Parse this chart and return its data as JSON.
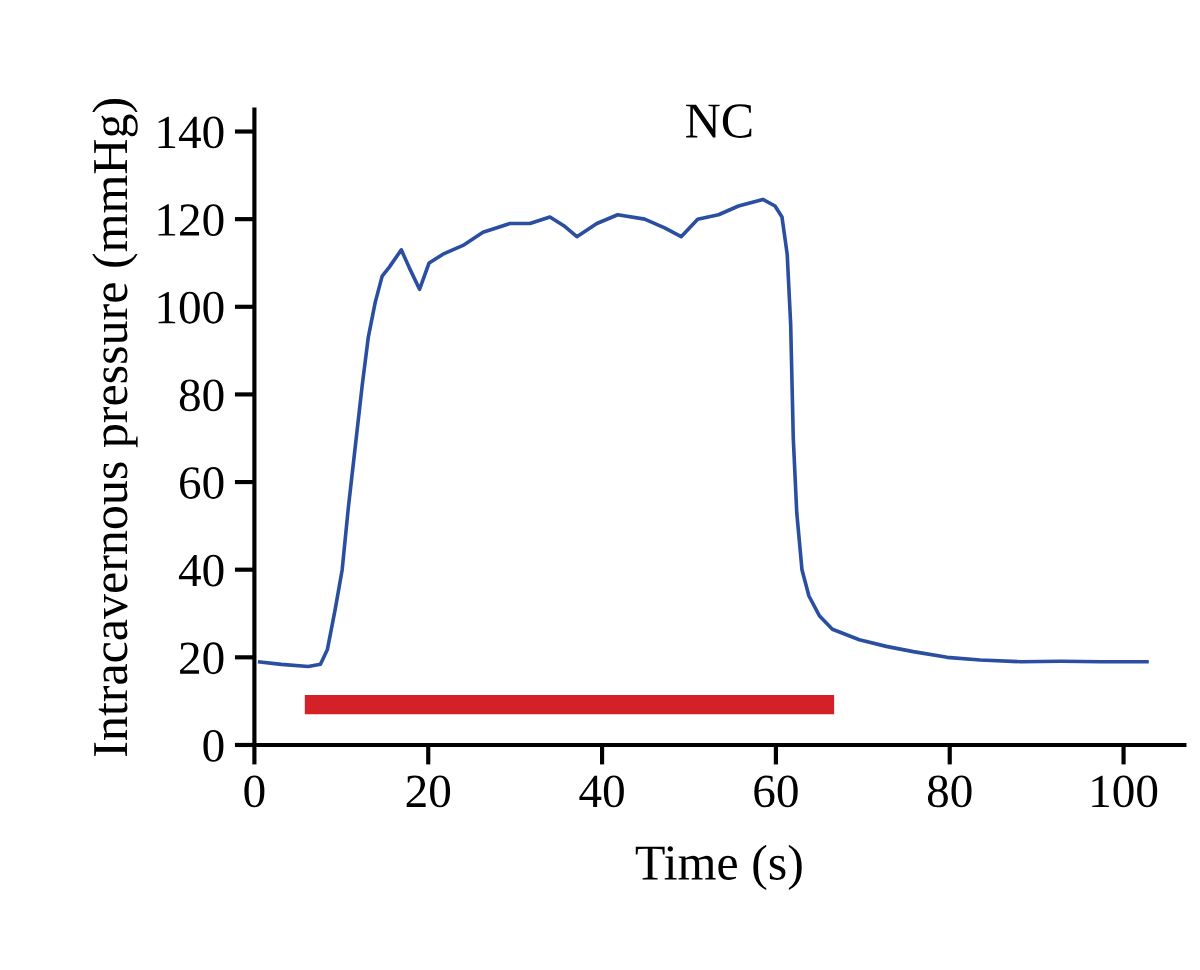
{
  "chart_data": {
    "type": "line",
    "title": "NC",
    "xlabel": "Time (s)",
    "ylabel": "Intracavernous pressure (mmHg)",
    "xlim": [
      0,
      107
    ],
    "ylim": [
      0,
      145
    ],
    "xticks": [
      0,
      20,
      40,
      60,
      80,
      100
    ],
    "yticks": [
      0,
      20,
      40,
      60,
      80,
      100,
      120,
      140
    ],
    "grid": false,
    "legend": false,
    "marker": "none",
    "line_style": "solid",
    "series": [
      {
        "color": "#2a4ea0",
        "x": [
          0.4,
          3.1,
          6.2,
          7.6,
          8.4,
          9.3,
          10.1,
          10.8,
          11.6,
          12.4,
          13.1,
          13.9,
          14.7,
          15.5,
          16.9,
          17.8,
          19.0,
          20.1,
          21.7,
          24.0,
          26.3,
          29.4,
          31.7,
          34.0,
          35.6,
          37.1,
          39.4,
          41.8,
          44.9,
          47.2,
          49.1,
          51.0,
          53.4,
          55.7,
          58.5,
          59.9,
          60.7,
          61.3,
          61.7,
          62.0,
          62.4,
          63.0,
          63.8,
          65.0,
          66.5,
          69.6,
          72.7,
          75.8,
          79.7,
          83.5,
          88.2,
          92.8,
          97.4,
          102.9
        ],
        "values": [
          19,
          18.4,
          17.9,
          18.4,
          21.8,
          31,
          40,
          54,
          68,
          82,
          93,
          101,
          107,
          109,
          113,
          109,
          104,
          110,
          112,
          114,
          117,
          119,
          119,
          120.5,
          118.5,
          116,
          119,
          121,
          120,
          118,
          116,
          120,
          121,
          123,
          124.5,
          123,
          120.5,
          112,
          96,
          70,
          53,
          40,
          34,
          29.5,
          26.4,
          24,
          22.5,
          21.3,
          20,
          19.4,
          19,
          19.1,
          19,
          19
        ]
      },
      {
        "color": "#d42027",
        "x": [
          5.8,
          66.7
        ],
        "values": [
          9.2,
          9.2
        ]
      }
    ]
  }
}
